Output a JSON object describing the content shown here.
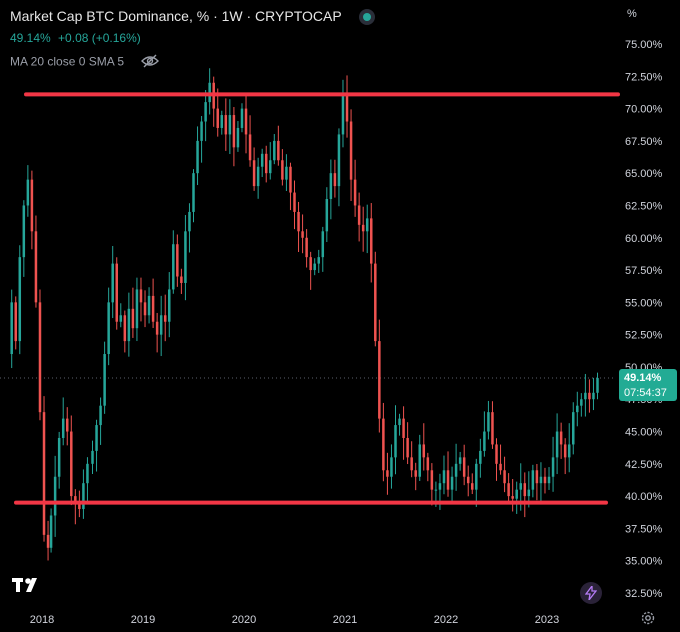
{
  "header": {
    "title": "Market Cap BTC Dominance, % · 1W · CRYPTOCAP",
    "last_value": "49.14%",
    "change": "+0.08 (+0.16%)",
    "indicator": "MA 20 close 0 SMA 5",
    "unit": "%"
  },
  "price_tag": {
    "value": "49.14%",
    "countdown": "07:54:37"
  },
  "colors": {
    "background": "#000000",
    "up": "#26a69a",
    "down": "#ef5350",
    "level_line": "#f23645",
    "axis_text": "#d1d4dc"
  },
  "icons": [
    "tradingview-logo-icon",
    "eye-off-icon",
    "lightning-icon",
    "gear-icon",
    "live-dot-icon"
  ],
  "chart_data": {
    "type": "candlestick",
    "title": "Market Cap BTC Dominance, % · 1W · CRYPTOCAP",
    "interval": "1W",
    "y_unit": "%",
    "ylim": [
      31.5,
      77
    ],
    "y_ticks": [
      "75.00%",
      "72.50%",
      "70.00%",
      "67.50%",
      "65.00%",
      "62.50%",
      "60.00%",
      "57.50%",
      "55.00%",
      "52.50%",
      "50.00%",
      "47.50%",
      "45.00%",
      "42.50%",
      "40.00%",
      "37.50%",
      "35.00%",
      "32.50%"
    ],
    "x_ticks": [
      "2018",
      "2019",
      "2020",
      "2021",
      "2022",
      "2023"
    ],
    "xlim": [
      2017.65,
      2023.7
    ],
    "last_price": 49.14,
    "grid": false,
    "close_path": [
      [
        2017.66,
        51.0
      ],
      [
        2017.7,
        55.0
      ],
      [
        2017.74,
        52.0
      ],
      [
        2017.78,
        58.5
      ],
      [
        2017.82,
        62.5
      ],
      [
        2017.86,
        64.5
      ],
      [
        2017.9,
        60.5
      ],
      [
        2017.94,
        55.0
      ],
      [
        2017.98,
        46.5
      ],
      [
        2018.02,
        37.0
      ],
      [
        2018.06,
        36.0
      ],
      [
        2018.09,
        38.5
      ],
      [
        2018.13,
        41.5
      ],
      [
        2018.17,
        44.5
      ],
      [
        2018.21,
        46.0
      ],
      [
        2018.25,
        45.0
      ],
      [
        2018.29,
        40.0
      ],
      [
        2018.33,
        39.5
      ],
      [
        2018.37,
        39.0
      ],
      [
        2018.41,
        41.0
      ],
      [
        2018.45,
        42.5
      ],
      [
        2018.5,
        43.5
      ],
      [
        2018.54,
        45.5
      ],
      [
        2018.58,
        47.0
      ],
      [
        2018.62,
        51.0
      ],
      [
        2018.66,
        55.0
      ],
      [
        2018.7,
        58.0
      ],
      [
        2018.74,
        53.5
      ],
      [
        2018.78,
        54.0
      ],
      [
        2018.82,
        52.0
      ],
      [
        2018.86,
        54.5
      ],
      [
        2018.9,
        53.0
      ],
      [
        2018.94,
        56.0
      ],
      [
        2018.98,
        55.0
      ],
      [
        2019.02,
        54.0
      ],
      [
        2019.06,
        55.5
      ],
      [
        2019.1,
        53.5
      ],
      [
        2019.14,
        52.5
      ],
      [
        2019.18,
        54.0
      ],
      [
        2019.22,
        53.5
      ],
      [
        2019.26,
        56.0
      ],
      [
        2019.3,
        59.5
      ],
      [
        2019.34,
        57.0
      ],
      [
        2019.38,
        56.5
      ],
      [
        2019.42,
        60.5
      ],
      [
        2019.46,
        62.0
      ],
      [
        2019.5,
        65.0
      ],
      [
        2019.54,
        67.5
      ],
      [
        2019.58,
        69.0
      ],
      [
        2019.62,
        70.5
      ],
      [
        2019.66,
        72.0
      ],
      [
        2019.7,
        70.0
      ],
      [
        2019.74,
        68.5
      ],
      [
        2019.78,
        69.5
      ],
      [
        2019.82,
        68.0
      ],
      [
        2019.86,
        69.5
      ],
      [
        2019.9,
        67.0
      ],
      [
        2019.94,
        68.5
      ],
      [
        2019.98,
        70.0
      ],
      [
        2020.02,
        68.0
      ],
      [
        2020.06,
        66.0
      ],
      [
        2020.1,
        64.0
      ],
      [
        2020.14,
        65.5
      ],
      [
        2020.18,
        66.5
      ],
      [
        2020.22,
        65.0
      ],
      [
        2020.26,
        66.0
      ],
      [
        2020.3,
        67.5
      ],
      [
        2020.34,
        66.0
      ],
      [
        2020.38,
        64.5
      ],
      [
        2020.42,
        65.5
      ],
      [
        2020.46,
        63.5
      ],
      [
        2020.5,
        62.0
      ],
      [
        2020.54,
        60.5
      ],
      [
        2020.58,
        60.0
      ],
      [
        2020.62,
        58.5
      ],
      [
        2020.66,
        57.5
      ],
      [
        2020.7,
        58.0
      ],
      [
        2020.74,
        58.5
      ],
      [
        2020.78,
        60.5
      ],
      [
        2020.82,
        63.0
      ],
      [
        2020.86,
        65.0
      ],
      [
        2020.9,
        64.0
      ],
      [
        2020.94,
        68.0
      ],
      [
        2020.98,
        71.0
      ],
      [
        2021.02,
        69.0
      ],
      [
        2021.06,
        64.5
      ],
      [
        2021.1,
        62.5
      ],
      [
        2021.14,
        61.0
      ],
      [
        2021.18,
        60.5
      ],
      [
        2021.22,
        61.5
      ],
      [
        2021.26,
        58.0
      ],
      [
        2021.3,
        52.0
      ],
      [
        2021.34,
        46.0
      ],
      [
        2021.38,
        42.0
      ],
      [
        2021.42,
        41.5
      ],
      [
        2021.46,
        43.0
      ],
      [
        2021.5,
        45.5
      ],
      [
        2021.54,
        46.0
      ],
      [
        2021.58,
        44.5
      ],
      [
        2021.62,
        43.0
      ],
      [
        2021.66,
        42.0
      ],
      [
        2021.7,
        41.5
      ],
      [
        2021.74,
        44.0
      ],
      [
        2021.78,
        43.0
      ],
      [
        2021.82,
        42.0
      ],
      [
        2021.86,
        40.5
      ],
      [
        2021.9,
        40.5
      ],
      [
        2021.94,
        41.0
      ],
      [
        2021.98,
        42.0
      ],
      [
        2022.02,
        40.5
      ],
      [
        2022.06,
        41.5
      ],
      [
        2022.1,
        42.5
      ],
      [
        2022.14,
        43.0
      ],
      [
        2022.18,
        41.5
      ],
      [
        2022.22,
        41.0
      ],
      [
        2022.26,
        40.5
      ],
      [
        2022.3,
        42.5
      ],
      [
        2022.34,
        43.5
      ],
      [
        2022.38,
        45.0
      ],
      [
        2022.42,
        46.5
      ],
      [
        2022.46,
        44.0
      ],
      [
        2022.5,
        42.5
      ],
      [
        2022.54,
        42.0
      ],
      [
        2022.58,
        41.0
      ],
      [
        2022.62,
        40.0
      ],
      [
        2022.66,
        39.8
      ],
      [
        2022.7,
        40.5
      ],
      [
        2022.74,
        41.0
      ],
      [
        2022.78,
        40.0
      ],
      [
        2022.82,
        40.5
      ],
      [
        2022.86,
        42.0
      ],
      [
        2022.9,
        41.0
      ],
      [
        2022.94,
        41.5
      ],
      [
        2022.98,
        41.0
      ],
      [
        2023.02,
        41.5
      ],
      [
        2023.06,
        43.0
      ],
      [
        2023.1,
        45.0
      ],
      [
        2023.14,
        44.0
      ],
      [
        2023.18,
        43.0
      ],
      [
        2023.22,
        44.0
      ],
      [
        2023.26,
        46.5
      ],
      [
        2023.3,
        47.0
      ],
      [
        2023.34,
        47.5
      ],
      [
        2023.38,
        48.0
      ],
      [
        2023.42,
        47.5
      ],
      [
        2023.46,
        48.0
      ],
      [
        2023.5,
        49.14
      ]
    ],
    "horizontal_levels": [
      {
        "name": "resistance",
        "value": 71.1
      },
      {
        "name": "support",
        "value": 39.5
      }
    ],
    "price_line": 49.14
  }
}
